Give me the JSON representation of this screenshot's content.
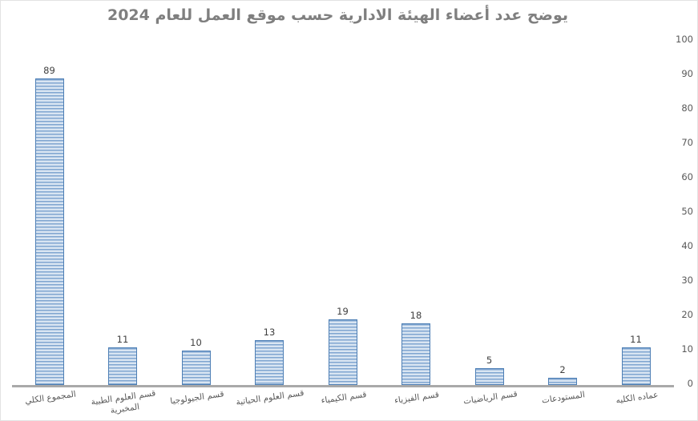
{
  "chart_data": {
    "type": "bar",
    "title": "يوضح عدد أعضاء الهيئة الادارية حسب موقع العمل للعام 2024",
    "categories": [
      "المجموع الكلي",
      "قسم العلوم الطبية\nالمخبرية",
      "قسم الجيولوجيا",
      "قسم العلوم الحياتية",
      "قسم الكيمياء",
      "قسم الفيزياء",
      "قسم الرياضيات",
      "المستودعات",
      "عماده الكليه"
    ],
    "values": [
      89,
      11,
      10,
      13,
      19,
      18,
      5,
      2,
      11
    ],
    "xlabel": "",
    "ylabel": "",
    "ylim": [
      0,
      100
    ],
    "ytick_interval": 10,
    "yticks": [
      0,
      10,
      20,
      30,
      40,
      50,
      60,
      70,
      80,
      90,
      100
    ],
    "y_axis_position": "right",
    "gridlines": "off",
    "legend": "none",
    "data_labels": "above-bars",
    "bar_fill_pattern": "horizontal-stripes"
  },
  "style": {
    "title_color": "#7f7f7f",
    "value_label_color": "#404040",
    "tick_label_color": "#595959",
    "category_label_color": "#595959",
    "axis_line_color": "#a9a9a9",
    "bar_border_color": "#4e7fb5",
    "bar_stripe_dark": "#7fa5d0",
    "bar_stripe_light": "#d9e5f2",
    "background_color": "#ffffff"
  }
}
